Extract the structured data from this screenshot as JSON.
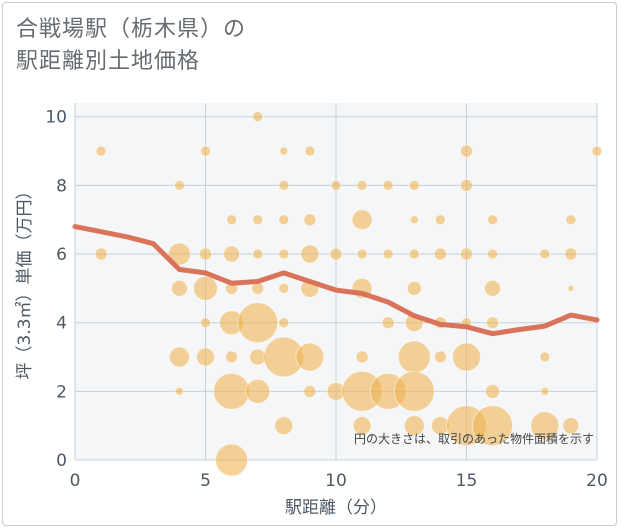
{
  "title_lines": [
    "合戦場駅（栃木県）の",
    "駅距離別土地価格"
  ],
  "chart_data": {
    "type": "scatter",
    "title": "合戦場駅（栃木県）の駅距離別土地価格",
    "xlabel": "駅距離（分）",
    "ylabel": "坪（3.3㎡）単価（万円）",
    "xlim": [
      0,
      20
    ],
    "ylim": [
      0,
      10.4
    ],
    "xticks": [
      0,
      5,
      10,
      15,
      20
    ],
    "yticks": [
      0,
      2,
      4,
      6,
      8,
      10
    ],
    "note": "円の大きさは、取引のあった物件面積を示す",
    "grid": true,
    "bubble_color": "#f0b350",
    "line_color": "#d9735a",
    "points": [
      {
        "x": 1,
        "y": 9,
        "s": 5
      },
      {
        "x": 1,
        "y": 6,
        "s": 6
      },
      {
        "x": 4,
        "y": 8,
        "s": 5
      },
      {
        "x": 4,
        "y": 6,
        "s": 11
      },
      {
        "x": 4,
        "y": 5,
        "s": 8
      },
      {
        "x": 4,
        "y": 3,
        "s": 10
      },
      {
        "x": 4,
        "y": 2,
        "s": 4
      },
      {
        "x": 5,
        "y": 9,
        "s": 5
      },
      {
        "x": 5,
        "y": 6,
        "s": 6
      },
      {
        "x": 5,
        "y": 5,
        "s": 12
      },
      {
        "x": 5,
        "y": 4,
        "s": 5
      },
      {
        "x": 5,
        "y": 3,
        "s": 9
      },
      {
        "x": 6,
        "y": 7,
        "s": 5
      },
      {
        "x": 6,
        "y": 6,
        "s": 8
      },
      {
        "x": 6,
        "y": 5,
        "s": 6
      },
      {
        "x": 6,
        "y": 4,
        "s": 12
      },
      {
        "x": 6,
        "y": 3,
        "s": 6
      },
      {
        "x": 6,
        "y": 2,
        "s": 18
      },
      {
        "x": 6,
        "y": 0,
        "s": 16
      },
      {
        "x": 7,
        "y": 10,
        "s": 5
      },
      {
        "x": 7,
        "y": 7,
        "s": 5
      },
      {
        "x": 7,
        "y": 6,
        "s": 5
      },
      {
        "x": 7,
        "y": 5,
        "s": 6
      },
      {
        "x": 7,
        "y": 4,
        "s": 20
      },
      {
        "x": 7,
        "y": 3,
        "s": 8
      },
      {
        "x": 7,
        "y": 2,
        "s": 12
      },
      {
        "x": 8,
        "y": 9,
        "s": 4
      },
      {
        "x": 8,
        "y": 8,
        "s": 5
      },
      {
        "x": 8,
        "y": 7,
        "s": 5
      },
      {
        "x": 8,
        "y": 6,
        "s": 5
      },
      {
        "x": 8,
        "y": 5,
        "s": 5
      },
      {
        "x": 8,
        "y": 4,
        "s": 5
      },
      {
        "x": 8,
        "y": 3,
        "s": 20
      },
      {
        "x": 8,
        "y": 1,
        "s": 9
      },
      {
        "x": 9,
        "y": 9,
        "s": 5
      },
      {
        "x": 9,
        "y": 7,
        "s": 6
      },
      {
        "x": 9,
        "y": 6,
        "s": 9
      },
      {
        "x": 9,
        "y": 5,
        "s": 9
      },
      {
        "x": 9,
        "y": 3,
        "s": 14
      },
      {
        "x": 9,
        "y": 2,
        "s": 6
      },
      {
        "x": 10,
        "y": 8,
        "s": 5
      },
      {
        "x": 10,
        "y": 6,
        "s": 6
      },
      {
        "x": 10,
        "y": 2,
        "s": 9
      },
      {
        "x": 11,
        "y": 8,
        "s": 5
      },
      {
        "x": 11,
        "y": 7,
        "s": 10
      },
      {
        "x": 11,
        "y": 6,
        "s": 5
      },
      {
        "x": 11,
        "y": 5,
        "s": 10
      },
      {
        "x": 11,
        "y": 3,
        "s": 6
      },
      {
        "x": 11,
        "y": 2,
        "s": 20
      },
      {
        "x": 11,
        "y": 1,
        "s": 9
      },
      {
        "x": 12,
        "y": 8,
        "s": 5
      },
      {
        "x": 12,
        "y": 6,
        "s": 5
      },
      {
        "x": 12,
        "y": 4,
        "s": 6
      },
      {
        "x": 12,
        "y": 2,
        "s": 18
      },
      {
        "x": 13,
        "y": 8,
        "s": 5
      },
      {
        "x": 13,
        "y": 7,
        "s": 4
      },
      {
        "x": 13,
        "y": 6,
        "s": 5
      },
      {
        "x": 13,
        "y": 5,
        "s": 7
      },
      {
        "x": 13,
        "y": 4,
        "s": 9
      },
      {
        "x": 13,
        "y": 3,
        "s": 16
      },
      {
        "x": 13,
        "y": 2,
        "s": 20
      },
      {
        "x": 13,
        "y": 1,
        "s": 10
      },
      {
        "x": 14,
        "y": 7,
        "s": 5
      },
      {
        "x": 14,
        "y": 6,
        "s": 6
      },
      {
        "x": 14,
        "y": 4,
        "s": 6
      },
      {
        "x": 14,
        "y": 3,
        "s": 6
      },
      {
        "x": 14,
        "y": 1,
        "s": 9
      },
      {
        "x": 15,
        "y": 9,
        "s": 6
      },
      {
        "x": 15,
        "y": 8,
        "s": 6
      },
      {
        "x": 15,
        "y": 6,
        "s": 6
      },
      {
        "x": 15,
        "y": 4,
        "s": 5
      },
      {
        "x": 15,
        "y": 3,
        "s": 14
      },
      {
        "x": 15,
        "y": 1,
        "s": 20
      },
      {
        "x": 16,
        "y": 7,
        "s": 5
      },
      {
        "x": 16,
        "y": 6,
        "s": 5
      },
      {
        "x": 16,
        "y": 5,
        "s": 8
      },
      {
        "x": 16,
        "y": 4,
        "s": 6
      },
      {
        "x": 16,
        "y": 2,
        "s": 7
      },
      {
        "x": 16,
        "y": 1,
        "s": 20
      },
      {
        "x": 18,
        "y": 6,
        "s": 5
      },
      {
        "x": 18,
        "y": 3,
        "s": 5
      },
      {
        "x": 18,
        "y": 2,
        "s": 4
      },
      {
        "x": 18,
        "y": 1,
        "s": 14
      },
      {
        "x": 19,
        "y": 7,
        "s": 5
      },
      {
        "x": 19,
        "y": 6,
        "s": 6
      },
      {
        "x": 19,
        "y": 5,
        "s": 3
      },
      {
        "x": 19,
        "y": 1,
        "s": 8
      },
      {
        "x": 20,
        "y": 9,
        "s": 5
      }
    ],
    "trend": [
      {
        "x": 0,
        "y": 6.8
      },
      {
        "x": 1,
        "y": 6.65
      },
      {
        "x": 2,
        "y": 6.5
      },
      {
        "x": 3,
        "y": 6.3
      },
      {
        "x": 4,
        "y": 5.55
      },
      {
        "x": 5,
        "y": 5.45
      },
      {
        "x": 6,
        "y": 5.15
      },
      {
        "x": 7,
        "y": 5.2
      },
      {
        "x": 8,
        "y": 5.45
      },
      {
        "x": 9,
        "y": 5.2
      },
      {
        "x": 10,
        "y": 4.95
      },
      {
        "x": 11,
        "y": 4.85
      },
      {
        "x": 12,
        "y": 4.6
      },
      {
        "x": 13,
        "y": 4.2
      },
      {
        "x": 14,
        "y": 3.95
      },
      {
        "x": 15,
        "y": 3.88
      },
      {
        "x": 16,
        "y": 3.68
      },
      {
        "x": 17,
        "y": 3.8
      },
      {
        "x": 18,
        "y": 3.9
      },
      {
        "x": 19,
        "y": 4.22
      },
      {
        "x": 20,
        "y": 4.08
      }
    ]
  }
}
